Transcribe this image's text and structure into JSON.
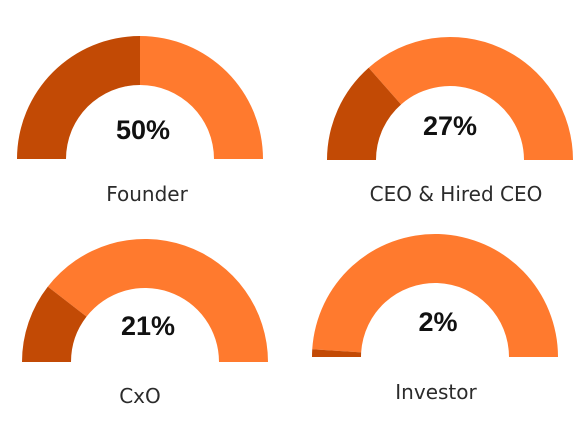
{
  "chart_data": {
    "type": "gauge",
    "unit": "%",
    "max": 100,
    "colors": {
      "filled": "#C24A05",
      "remaining": "#FF7A2E"
    },
    "gauges": [
      {
        "label": "Founder",
        "value": 50,
        "value_text": "50%"
      },
      {
        "label": "CEO & Hired CEO",
        "value": 27,
        "value_text": "27%"
      },
      {
        "label": "CxO",
        "value": 21,
        "value_text": "21%"
      },
      {
        "label": "Investor",
        "value": 2,
        "value_text": "2%"
      }
    ]
  }
}
